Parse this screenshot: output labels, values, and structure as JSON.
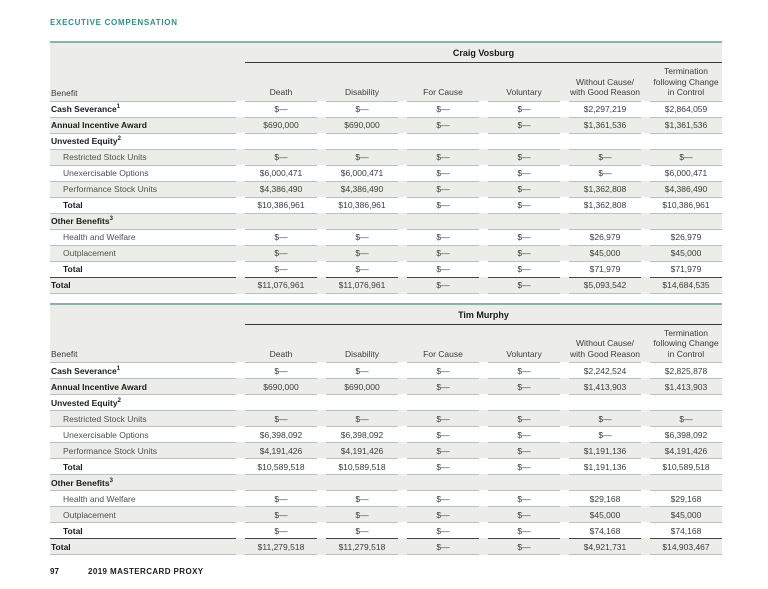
{
  "page": {
    "eyebrow": "EXECUTIVE COMPENSATION"
  },
  "footer": {
    "page_number": "97",
    "label": "2019 MASTERCARD PROXY"
  },
  "benefit_header": "Benefit",
  "columns": [
    "Death",
    "Disability",
    "For Cause",
    "Voluntary",
    "Without Cause/\nwith Good Reason",
    "Termination\nfollowing Change\nin Control"
  ],
  "tables": [
    {
      "name": "Craig Vosburg",
      "rows": [
        {
          "label": "Cash Severance",
          "sup": "1",
          "style": "bold",
          "values": [
            "$—",
            "$—",
            "$—",
            "$—",
            "$2,297,219",
            "$2,864,059"
          ]
        },
        {
          "label": "Annual Incentive Award",
          "sup": "",
          "style": "bold",
          "values": [
            "$690,000",
            "$690,000",
            "$—",
            "$—",
            "$1,361,536",
            "$1,361,536"
          ]
        },
        {
          "label": "Unvested Equity",
          "sup": "2",
          "style": "section",
          "values": [
            "",
            "",
            "",
            "",
            "",
            ""
          ]
        },
        {
          "label": "Restricted Stock Units",
          "sup": "",
          "style": "sub",
          "values": [
            "$—",
            "$—",
            "$—",
            "$—",
            "$—",
            "$—"
          ]
        },
        {
          "label": "Unexercisable Options",
          "sup": "",
          "style": "sub",
          "values": [
            "$6,000,471",
            "$6,000,471",
            "$—",
            "$—",
            "$—",
            "$6,000,471"
          ]
        },
        {
          "label": "Performance Stock Units",
          "sup": "",
          "style": "sub",
          "values": [
            "$4,386,490",
            "$4,386,490",
            "$—",
            "$—",
            "$1,362,808",
            "$4,386,490"
          ]
        },
        {
          "label": "Total",
          "sup": "",
          "style": "subtotal",
          "values": [
            "$10,386,961",
            "$10,386,961",
            "$—",
            "$—",
            "$1,362,808",
            "$10,386,961"
          ]
        },
        {
          "label": "Other Benefits",
          "sup": "3",
          "style": "section",
          "values": [
            "",
            "",
            "",
            "",
            "",
            ""
          ]
        },
        {
          "label": "Health and Welfare",
          "sup": "",
          "style": "sub",
          "values": [
            "$—",
            "$—",
            "$—",
            "$—",
            "$26,979",
            "$26,979"
          ]
        },
        {
          "label": "Outplacement",
          "sup": "",
          "style": "sub",
          "values": [
            "$—",
            "$—",
            "$—",
            "$—",
            "$45,000",
            "$45,000"
          ]
        },
        {
          "label": "Total",
          "sup": "",
          "style": "subtotal",
          "values": [
            "$—",
            "$—",
            "$—",
            "$—",
            "$71,979",
            "$71,979"
          ]
        },
        {
          "label": "Total",
          "sup": "",
          "style": "grand",
          "values": [
            "$11,076,961",
            "$11,076,961",
            "$—",
            "$—",
            "$5,093,542",
            "$14,684,535"
          ]
        }
      ]
    },
    {
      "name": "Tim Murphy",
      "rows": [
        {
          "label": "Cash Severance",
          "sup": "1",
          "style": "bold",
          "values": [
            "$—",
            "$—",
            "$—",
            "$—",
            "$2,242,524",
            "$2,825,878"
          ]
        },
        {
          "label": "Annual Incentive Award",
          "sup": "",
          "style": "bold",
          "values": [
            "$690,000",
            "$690,000",
            "$—",
            "$—",
            "$1,413,903",
            "$1,413,903"
          ]
        },
        {
          "label": "Unvested Equity",
          "sup": "2",
          "style": "section",
          "values": [
            "",
            "",
            "",
            "",
            "",
            ""
          ]
        },
        {
          "label": "Restricted Stock Units",
          "sup": "",
          "style": "sub",
          "values": [
            "$—",
            "$—",
            "$—",
            "$—",
            "$—",
            "$—"
          ]
        },
        {
          "label": "Unexercisable Options",
          "sup": "",
          "style": "sub",
          "values": [
            "$6,398,092",
            "$6,398,092",
            "$—",
            "$—",
            "$—",
            "$6,398,092"
          ]
        },
        {
          "label": "Performance Stock Units",
          "sup": "",
          "style": "sub",
          "values": [
            "$4,191,426",
            "$4,191,426",
            "$—",
            "$—",
            "$1,191,136",
            "$4,191,426"
          ]
        },
        {
          "label": "Total",
          "sup": "",
          "style": "subtotal",
          "values": [
            "$10,589,518",
            "$10,589,518",
            "$—",
            "$—",
            "$1,191,136",
            "$10,589,518"
          ]
        },
        {
          "label": "Other Benefits",
          "sup": "3",
          "style": "section",
          "values": [
            "",
            "",
            "",
            "",
            "",
            ""
          ]
        },
        {
          "label": "Health and Welfare",
          "sup": "",
          "style": "sub",
          "values": [
            "$—",
            "$—",
            "$—",
            "$—",
            "$29,168",
            "$29,168"
          ]
        },
        {
          "label": "Outplacement",
          "sup": "",
          "style": "sub",
          "values": [
            "$—",
            "$—",
            "$—",
            "$—",
            "$45,000",
            "$45,000"
          ]
        },
        {
          "label": "Total",
          "sup": "",
          "style": "subtotal",
          "values": [
            "$—",
            "$—",
            "$—",
            "$—",
            "$74,168",
            "$74,168"
          ]
        },
        {
          "label": "Total",
          "sup": "",
          "style": "grand",
          "values": [
            "$11,279,518",
            "$11,279,518",
            "$—",
            "$—",
            "$4,921,731",
            "$14,903,467"
          ]
        }
      ]
    }
  ]
}
